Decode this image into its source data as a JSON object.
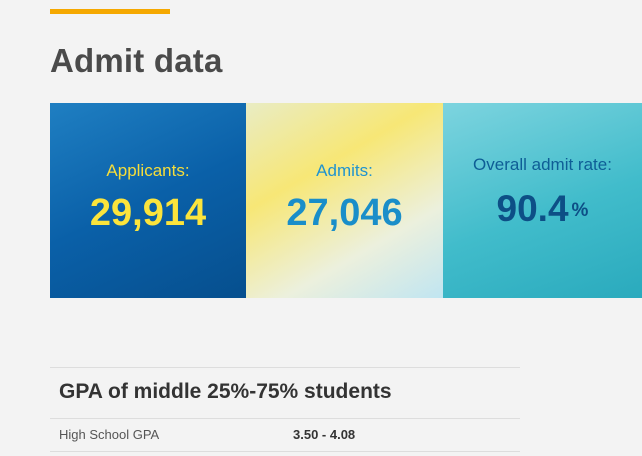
{
  "section": {
    "title": "Admit data"
  },
  "stats": [
    {
      "label": "Applicants:",
      "value": "29,914"
    },
    {
      "label": "Admits:",
      "value": "27,046"
    },
    {
      "label": "Overall admit rate:",
      "value": "90.4",
      "unit": "%"
    }
  ],
  "gpa": {
    "heading": "GPA of middle 25%-75% students",
    "rows": [
      {
        "label": "High School GPA",
        "value": "3.50 - 4.08"
      }
    ]
  },
  "colors": {
    "accent": "#f5a800",
    "applicants_panel": "#0a60a8",
    "applicants_text": "#fbe43c",
    "admits_panel": "#f7e776",
    "admits_text": "#1a8ec9",
    "rate_panel": "#41bccb",
    "rate_text": "#0d4f86"
  }
}
